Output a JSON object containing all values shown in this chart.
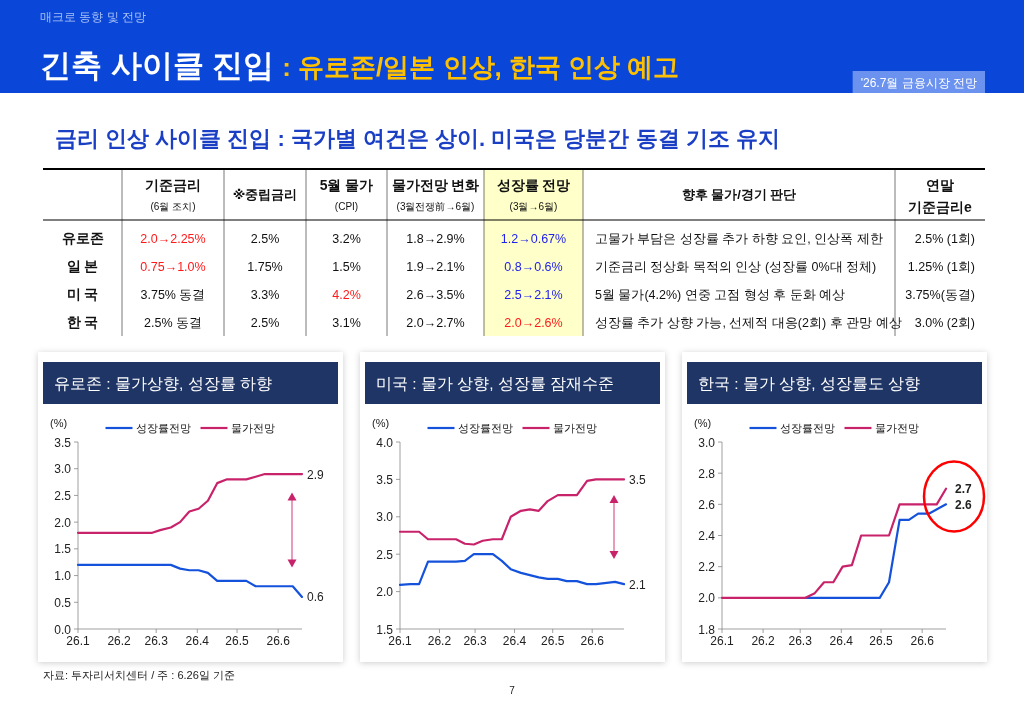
{
  "chart_data": [
    {
      "type": "other",
      "title": "긴축 사이클 진입",
      "subtitle": ": 유로존/일본 인상, 한국 인상 예고",
      "annotations": [
        "매크로 동향 및 전망",
        "'26.7월 금융시장 전망",
        "금리 인상 사이클 진입 : 국가별 여건은 상이. 미국은 당분간 동결 기조 유지",
        "자료: 투자리서치센터 / 주 : 6.26일 기준",
        "7"
      ],
      "categories": [
        "기준금리\n(6월 조치)",
        "※중립금리",
        "5월 물가\n(CPI)",
        "물가전망 변화\n(3월전쟁前→6월)",
        "성장률 전망\n(3월→6월)",
        "향후 물가/경기 판단",
        "연말\n기준금리e"
      ],
      "y_categories": [
        "유로존",
        "일 본",
        "미 국",
        "한 국"
      ],
      "cell_labels": [
        [
          "2.0→2.25%",
          "2.5%",
          "3.2%",
          "1.8→2.9%",
          "1.2→0.67%",
          "고물가 부담은 성장률 추가 하향 요인, 인상폭 제한",
          "2.5% (1회)"
        ],
        [
          "0.75→1.0%",
          "1.75%",
          "1.5%",
          "1.9→2.1%",
          "0.8→0.6%",
          "기준금리 정상화 목적의 인상 (성장률 0%대 정체)",
          "1.25% (1회)"
        ],
        [
          "3.75% 동결",
          "3.3%",
          "4.2%",
          "2.6→3.5%",
          "2.5→2.1%",
          "5월 물가(4.2%) 연중 고점 형성 후 둔화 예상",
          "3.75%(동결)"
        ],
        [
          "2.5% 동결",
          "2.5%",
          "3.1%",
          "2.0→2.7%",
          "2.0→2.6%",
          "성장률 추가 상향 가능, 선제적 대응(2회) 후 관망 예상",
          "3.0% (2회)"
        ]
      ]
    },
    {
      "type": "line",
      "title": "유로존 : 물가상향, 성장률 하향",
      "ylabel": "(%)",
      "legend": "top",
      "xlim": [
        "2026-01-01",
        "2026-06-19"
      ],
      "xticks": [
        {
          "value": "2026-01-01",
          "label": "26.1"
        },
        {
          "value": "2026-02-01",
          "label": "26.2"
        },
        {
          "value": "2026-03-01",
          "label": "26.3"
        },
        {
          "value": "2026-04-01",
          "label": "26.4"
        },
        {
          "value": "2026-05-01",
          "label": "26.5"
        },
        {
          "value": "2026-06-01",
          "label": "26.6"
        }
      ],
      "ylim": [
        0,
        3.5
      ],
      "yticks": [
        {
          "value": 0,
          "label": "0.0"
        },
        0.5,
        {
          "value": 1,
          "label": "1.0"
        },
        1.5,
        {
          "value": 2,
          "label": "2.0"
        },
        2.5,
        {
          "value": 3,
          "label": "3.0"
        },
        3.5
      ],
      "series": [
        {
          "name": "성장률전망",
          "color": "#1452dc",
          "x": [
            "2026-01-01",
            "2026-03-12",
            "2026-03-19",
            "2026-03-26",
            "2026-04-02",
            "2026-04-09",
            "2026-04-16",
            "2026-05-08",
            "2026-05-15",
            "2026-06-12",
            "2026-06-19"
          ],
          "values": [
            1.2,
            1.2,
            1.13,
            1.1,
            1.1,
            1.05,
            0.9,
            0.9,
            0.8,
            0.8,
            0.6
          ]
        },
        {
          "name": "물가전망",
          "color": "#c8226a",
          "x": [
            "2026-01-01",
            "2026-02-26",
            "2026-03-04",
            "2026-03-12",
            "2026-03-19",
            "2026-03-26",
            "2026-04-02",
            "2026-04-09",
            "2026-04-16",
            "2026-04-23",
            "2026-05-08",
            "2026-05-15",
            "2026-05-22",
            "2026-06-19"
          ],
          "values": [
            1.8,
            1.8,
            1.85,
            1.9,
            2.0,
            2.2,
            2.25,
            2.4,
            2.73,
            2.8,
            2.8,
            2.85,
            2.9,
            2.9
          ]
        }
      ],
      "annotations": [
        {
          "text": "2.9",
          "x": "2026-06-19",
          "y": 2.9
        },
        {
          "text": "0.6",
          "x": "2026-06-19",
          "y": 0.6
        }
      ]
    },
    {
      "type": "line",
      "title": "미국 : 물가 상향, 성장률 잠재수준",
      "ylabel": "(%)",
      "legend": "top",
      "xlim": [
        "2026-01-01",
        "2026-06-26"
      ],
      "xticks": [
        {
          "value": "2026-01-01",
          "label": "26.1"
        },
        {
          "value": "2026-02-01",
          "label": "26.2"
        },
        {
          "value": "2026-03-01",
          "label": "26.3"
        },
        {
          "value": "2026-04-01",
          "label": "26.4"
        },
        {
          "value": "2026-05-01",
          "label": "26.5"
        },
        {
          "value": "2026-06-01",
          "label": "26.6"
        }
      ],
      "ylim": [
        1.5,
        4.0
      ],
      "yticks": [
        1.5,
        {
          "value": 2,
          "label": "2.0"
        },
        2.5,
        {
          "value": 3,
          "label": "3.0"
        },
        3.5,
        {
          "value": 4,
          "label": "4.0"
        }
      ],
      "series": [
        {
          "name": "성장률전망",
          "color": "#1452dc",
          "x": [
            "2026-01-01",
            "2026-01-09",
            "2026-01-16",
            "2026-01-23",
            "2026-02-14",
            "2026-02-21",
            "2026-02-28",
            "2026-03-15",
            "2026-03-22",
            "2026-03-29",
            "2026-04-06",
            "2026-04-13",
            "2026-04-20",
            "2026-04-27",
            "2026-05-05",
            "2026-05-12",
            "2026-05-20",
            "2026-05-28",
            "2026-06-04",
            "2026-06-19",
            "2026-06-26"
          ],
          "values": [
            2.09,
            2.1,
            2.1,
            2.4,
            2.4,
            2.41,
            2.5,
            2.5,
            2.41,
            2.3,
            2.25,
            2.22,
            2.19,
            2.17,
            2.17,
            2.14,
            2.14,
            2.1,
            2.1,
            2.13,
            2.1
          ]
        },
        {
          "name": "물가전망",
          "color": "#c8226a",
          "x": [
            "2026-01-01",
            "2026-01-16",
            "2026-01-23",
            "2026-02-14",
            "2026-02-21",
            "2026-02-28",
            "2026-03-07",
            "2026-03-15",
            "2026-03-22",
            "2026-03-29",
            "2026-04-06",
            "2026-04-13",
            "2026-04-20",
            "2026-04-27",
            "2026-05-05",
            "2026-05-20",
            "2026-05-28",
            "2026-06-04",
            "2026-06-26"
          ],
          "values": [
            2.8,
            2.8,
            2.7,
            2.7,
            2.64,
            2.63,
            2.68,
            2.7,
            2.7,
            3.0,
            3.08,
            3.1,
            3.08,
            3.21,
            3.29,
            3.29,
            3.48,
            3.5,
            3.5
          ]
        }
      ],
      "annotations": [
        {
          "text": "3.5",
          "x": "2026-06-26",
          "y": 3.5
        },
        {
          "text": "2.1",
          "x": "2026-06-26",
          "y": 2.1
        }
      ]
    },
    {
      "type": "line",
      "title": "한국 : 물가 상향, 성장률도 상향",
      "ylabel": "(%)",
      "legend": "top",
      "xlim": [
        "2026-01-01",
        "2026-06-19"
      ],
      "xticks": [
        {
          "value": "2026-01-01",
          "label": "26.1"
        },
        {
          "value": "2026-02-01",
          "label": "26.2"
        },
        {
          "value": "2026-03-01",
          "label": "26.3"
        },
        {
          "value": "2026-04-01",
          "label": "26.4"
        },
        {
          "value": "2026-05-01",
          "label": "26.5"
        },
        {
          "value": "2026-06-01",
          "label": "26.6"
        }
      ],
      "ylim": [
        1.8,
        3.0
      ],
      "yticks": [
        1.8,
        {
          "value": 2,
          "label": "2.0"
        },
        2.2,
        2.4,
        2.6,
        2.8,
        {
          "value": 3,
          "label": "3.0"
        }
      ],
      "series": [
        {
          "name": "성장률전망",
          "color": "#1452dc",
          "x": [
            "2026-03-05",
            "2026-04-30",
            "2026-05-07",
            "2026-05-15",
            "2026-05-22",
            "2026-05-29",
            "2026-06-06",
            "2026-06-19"
          ],
          "values": [
            2.0,
            2.0,
            2.1,
            2.5,
            2.5,
            2.54,
            2.54,
            2.6
          ]
        },
        {
          "name": "물가전망",
          "color": "#c8226a",
          "x": [
            "2026-01-01",
            "2026-03-05",
            "2026-03-12",
            "2026-03-19",
            "2026-03-26",
            "2026-04-02",
            "2026-04-09",
            "2026-04-16",
            "2026-05-07",
            "2026-05-15",
            "2026-06-12",
            "2026-06-19"
          ],
          "values": [
            2.0,
            2.0,
            2.03,
            2.1,
            2.1,
            2.2,
            2.21,
            2.4,
            2.4,
            2.6,
            2.6,
            2.7
          ]
        }
      ],
      "annotations": [
        {
          "text": "2.7",
          "x": "2026-06-19",
          "y": 2.7
        },
        {
          "text": "2.6",
          "x": "2026-06-19",
          "y": 2.6
        }
      ]
    }
  ]
}
